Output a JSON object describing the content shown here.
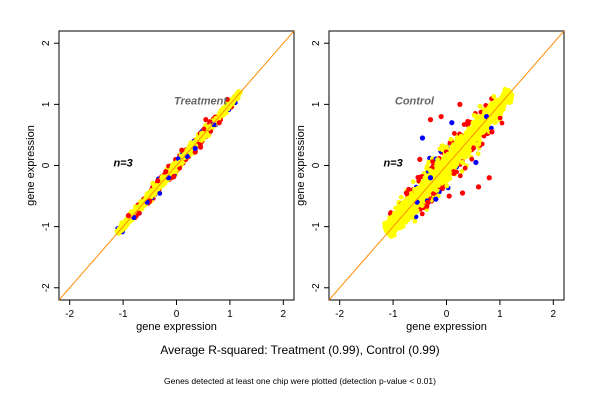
{
  "colors": {
    "point_primary": "#ffff00",
    "point_red": "#ff0000",
    "point_blue": "#0000ff",
    "identity_line": "#ff8c00",
    "panel_title": "#666666",
    "axis": "#000000"
  },
  "chart_data": [
    {
      "type": "scatter",
      "title": "Treatment",
      "annotation": "n=3",
      "xlabel": "gene expression",
      "ylabel": "gene expression",
      "xlim": [
        -2.2,
        2.2
      ],
      "ylim": [
        -2.2,
        2.2
      ],
      "xticks": [
        -2,
        -1,
        0,
        1,
        2
      ],
      "yticks": [
        -2,
        -1,
        0,
        1,
        2
      ],
      "grid": false,
      "reference_line": {
        "slope": 1,
        "intercept": 0
      },
      "distribution": {
        "x_range": [
          -1.1,
          1.2
        ],
        "spread": 0.05
      },
      "series": [
        {
          "color": "yellow",
          "points": [
            [
              -1.05,
              -1.02
            ],
            [
              -0.9,
              -0.93
            ],
            [
              -0.75,
              -0.72
            ],
            [
              -0.6,
              -0.58
            ],
            [
              -0.45,
              -0.48
            ],
            [
              -0.3,
              -0.27
            ],
            [
              -0.15,
              -0.17
            ],
            [
              0,
              0.02
            ],
            [
              0.15,
              0.13
            ],
            [
              0.3,
              0.33
            ],
            [
              0.45,
              0.43
            ],
            [
              0.6,
              0.62
            ],
            [
              0.75,
              0.73
            ],
            [
              0.9,
              0.92
            ],
            [
              1.05,
              1.03
            ],
            [
              1.15,
              1.17
            ]
          ]
        },
        {
          "color": "red",
          "points": [
            [
              -0.7,
              -0.78
            ],
            [
              -0.5,
              -0.58
            ],
            [
              -0.35,
              -0.25
            ],
            [
              -0.2,
              -0.1
            ],
            [
              -0.05,
              -0.18
            ],
            [
              0.1,
              0.25
            ],
            [
              0.35,
              0.22
            ],
            [
              0.45,
              0.3
            ],
            [
              0.55,
              0.75
            ],
            [
              0.8,
              0.7
            ],
            [
              0.95,
              1.08
            ],
            [
              -0.9,
              -0.82
            ]
          ]
        },
        {
          "color": "blue",
          "points": [
            [
              -0.8,
              -0.85
            ],
            [
              -0.55,
              -0.6
            ],
            [
              -0.15,
              -0.2
            ],
            [
              0.2,
              0.15
            ],
            [
              0.35,
              0.28
            ],
            [
              0.7,
              0.67
            ]
          ]
        }
      ]
    },
    {
      "type": "scatter",
      "title": "Control",
      "annotation": "n=3",
      "xlabel": "gene expression",
      "ylabel": "gene expression",
      "xlim": [
        -2.2,
        2.2
      ],
      "ylim": [
        -2.2,
        2.2
      ],
      "xticks": [
        -2,
        -1,
        0,
        1,
        2
      ],
      "yticks": [
        -2,
        -1,
        0,
        1,
        2
      ],
      "grid": false,
      "reference_line": {
        "slope": 1,
        "intercept": 0
      },
      "distribution": {
        "x_range": [
          -1.1,
          1.2
        ],
        "spread": 0.16
      },
      "series": [
        {
          "color": "yellow",
          "points": [
            [
              -1.05,
              -1.0
            ],
            [
              -0.8,
              -0.6
            ],
            [
              -0.6,
              -0.75
            ],
            [
              -0.4,
              -0.2
            ],
            [
              -0.2,
              -0.4
            ],
            [
              0,
              0.3
            ],
            [
              0,
              -0.25
            ],
            [
              0.2,
              0.45
            ],
            [
              0.3,
              0.05
            ],
            [
              0.5,
              0.7
            ],
            [
              0.6,
              0.35
            ],
            [
              0.8,
              0.95
            ],
            [
              1.0,
              0.85
            ],
            [
              1.15,
              1.15
            ]
          ]
        },
        {
          "color": "red",
          "points": [
            [
              -0.3,
              0.75
            ],
            [
              -0.1,
              0.8
            ],
            [
              0.25,
              1.0
            ],
            [
              0.4,
              0.7
            ],
            [
              0.6,
              -0.35
            ],
            [
              0.8,
              -0.2
            ],
            [
              0.3,
              -0.45
            ],
            [
              -0.35,
              -0.6
            ],
            [
              -0.5,
              0.1
            ],
            [
              -0.75,
              -0.45
            ],
            [
              0.85,
              0.55
            ],
            [
              0.05,
              -0.5
            ]
          ]
        },
        {
          "color": "blue",
          "points": [
            [
              -0.45,
              0.45
            ],
            [
              -0.3,
              -0.2
            ],
            [
              0.1,
              0.7
            ],
            [
              0.55,
              0.05
            ],
            [
              -0.2,
              -0.55
            ],
            [
              0.75,
              0.8
            ],
            [
              -0.55,
              -0.6
            ]
          ]
        }
      ]
    }
  ],
  "caption": {
    "main": "Average R-squared: Treatment (0.99), Control (0.99)",
    "sub": "Genes detected at least one chip were plotted (detection p-value < 0.01)"
  }
}
